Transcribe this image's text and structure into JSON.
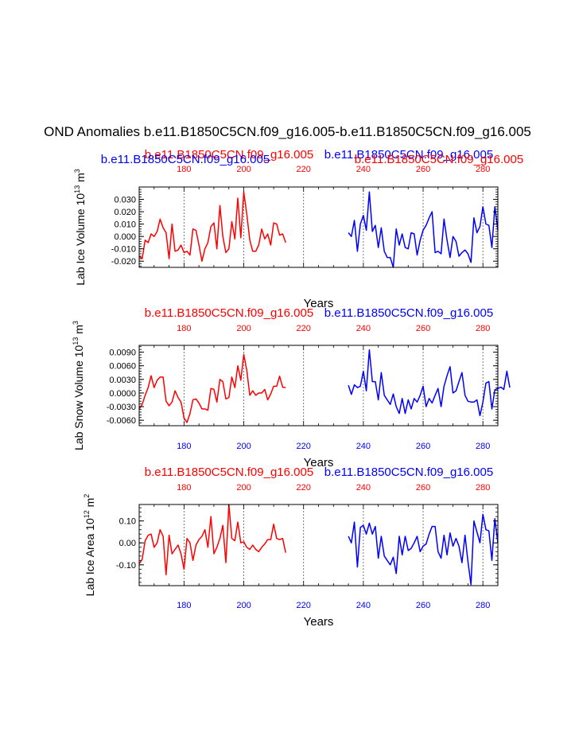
{
  "figure": {
    "title": "OND Anomalies b.e11.B1850C5CN.f09_g16.005-b.e11.B1850C5CN.f09_g16.005"
  },
  "colors": {
    "red": "#ff0000",
    "blue": "#0000ff",
    "black": "#000000",
    "grid": "#555555"
  },
  "chart_data": [
    {
      "type": "line",
      "panel": "ice-volume",
      "ylabel": "Lab Ice Volume 10",
      "ylabel_sup": "13",
      "ylabel_unit": " m",
      "ylabel_unit_sup": "3",
      "xlabel": "Years",
      "xlim": [
        165,
        285
      ],
      "ylim": [
        -0.025,
        0.04
      ],
      "yticks": [
        -0.02,
        -0.01,
        0.0,
        0.01,
        0.02,
        0.03
      ],
      "ytick_labels": [
        "-0.020",
        "-0.010",
        "0.000",
        "0.010",
        "0.020",
        "0.030"
      ],
      "top_ticks": [
        "180",
        "200",
        "220",
        "240",
        "260",
        "280"
      ],
      "bottom_ticks": [],
      "top_red_label": "b.e11.B1850C5CN.f09_g16.005",
      "top_blue_label": "b.e11.B1850C5CN.f09_g16.005",
      "overlap_red_label": "b.e11.B1850C5CN.f09_g16.005",
      "overlap_blue_label": "b.e11.B1850C5CN.f09_g16.005",
      "series": [
        {
          "name": "b.e11.B1850C5CN.f09_g16.005",
          "color": "red",
          "x_start": 165,
          "values": [
            -0.016,
            -0.018,
            -0.003,
            -0.005,
            0.002,
            0.0,
            0.004,
            0.014,
            0.007,
            0.003,
            -0.018,
            0.01,
            -0.012,
            -0.011,
            -0.007,
            -0.013,
            -0.012,
            -0.015,
            0.006,
            0.005,
            -0.007,
            -0.02,
            -0.01,
            -0.005,
            0.008,
            0.011,
            -0.01,
            0.025,
            0.0,
            -0.013,
            -0.01,
            0.012,
            -0.002,
            0.031,
            -0.001,
            0.036,
            0.018,
            -0.003,
            -0.012,
            -0.012,
            -0.007,
            0.006,
            -0.002,
            0.002,
            -0.007,
            0.011,
            0.01,
            0.001,
            0.002,
            -0.005
          ]
        },
        {
          "name": "b.e11.B1850C5CN.f09_g16.005",
          "color": "blue",
          "x_start": 235,
          "values": [
            0.003,
            0.0,
            0.013,
            -0.012,
            0.01,
            0.017,
            0.005,
            0.036,
            0.004,
            0.009,
            -0.009,
            0.007,
            -0.012,
            -0.017,
            -0.017,
            -0.025,
            0.006,
            -0.007,
            0.002,
            -0.009,
            -0.01,
            0.003,
            0.002,
            -0.015,
            -0.003,
            0.005,
            0.009,
            0.015,
            0.02,
            -0.013,
            -0.012,
            -0.014,
            0.014,
            -0.003,
            -0.017,
            0.0,
            -0.004,
            -0.016,
            -0.013,
            -0.011,
            -0.014,
            -0.021,
            0.015,
            0.003,
            0.008,
            0.024,
            0.01,
            0.009,
            -0.009,
            0.024,
            0.005
          ]
        }
      ]
    },
    {
      "type": "line",
      "panel": "snow-volume",
      "ylabel": "Lab Snow Volume 10",
      "ylabel_sup": "13",
      "ylabel_unit": " m",
      "ylabel_unit_sup": "3",
      "xlabel": "Years",
      "xlim": [
        165,
        285
      ],
      "ylim": [
        -0.0072,
        0.0105
      ],
      "yticks": [
        -0.006,
        -0.003,
        0.0,
        0.003,
        0.006,
        0.009
      ],
      "ytick_labels": [
        "-0.0060",
        "-0.0030",
        "0.0000",
        "0.0030",
        "0.0060",
        "0.0090"
      ],
      "top_ticks": [
        "180",
        "200",
        "220",
        "240",
        "260",
        "280"
      ],
      "bottom_ticks": [
        "180",
        "200",
        "220",
        "240",
        "260",
        "280"
      ],
      "top_red_label": "b.e11.B1850C5CN.f09_g16.005",
      "top_blue_label": "b.e11.B1850C5CN.f09_g16.005",
      "series": [
        {
          "name": "b.e11.B1850C5CN.f09_g16.005",
          "color": "red",
          "x_start": 165,
          "values": [
            -0.0035,
            -0.0025,
            -0.0005,
            0.0012,
            0.0038,
            0.0012,
            0.0028,
            0.0035,
            0.0035,
            -0.0018,
            -0.0028,
            -0.002,
            0.0005,
            -0.001,
            -0.002,
            -0.0055,
            -0.0065,
            -0.0045,
            -0.0015,
            -0.0013,
            -0.0022,
            -0.0035,
            -0.0035,
            -0.0038,
            0.001,
            0.0008,
            -0.002,
            0.003,
            0.0025,
            -0.0013,
            -0.001,
            0.0035,
            0.0012,
            0.006,
            0.0028,
            0.0085,
            0.005,
            -0.0005,
            0.0005,
            -0.0005,
            0.0,
            0.0,
            0.0008,
            -0.0015,
            -0.0002,
            0.0015,
            0.0015,
            0.0037,
            0.0013,
            0.0012
          ]
        },
        {
          "name": "b.e11.B1850C5CN.f09_g16.005",
          "color": "blue",
          "x_start": 235,
          "values": [
            0.0017,
            -0.0003,
            0.0018,
            0.0012,
            0.0015,
            0.0048,
            0.0005,
            0.0095,
            0.0025,
            0.0025,
            -0.0015,
            0.0045,
            -0.0005,
            -0.0015,
            -0.0025,
            -0.0002,
            -0.003,
            -0.0045,
            -0.0012,
            -0.0045,
            -0.0015,
            -0.0035,
            -0.0012,
            -0.002,
            -0.0005,
            0.0015,
            -0.003,
            -0.0012,
            -0.0022,
            -0.0005,
            0.001,
            -0.003,
            0.0015,
            0.0038,
            0.0058,
            0.0,
            0.0005,
            0.0025,
            0.0045,
            -0.0005,
            -0.0018,
            -0.002,
            -0.002,
            -0.0015,
            -0.005,
            -0.002,
            0.0022,
            0.0025,
            -0.0035,
            0.0007,
            0.001,
            0.0013,
            0.0008,
            0.0048,
            0.0012
          ]
        }
      ]
    },
    {
      "type": "line",
      "panel": "ice-area",
      "ylabel": "Lab Ice Area 10",
      "ylabel_sup": "12",
      "ylabel_unit": " m",
      "ylabel_unit_sup": "2",
      "xlabel": "Years",
      "xlim": [
        165,
        285
      ],
      "ylim": [
        -0.195,
        0.175
      ],
      "yticks": [
        -0.1,
        0.0,
        0.1
      ],
      "ytick_labels": [
        "-0.10",
        "0.00",
        "0.10"
      ],
      "top_ticks": [
        "180",
        "200",
        "220",
        "240",
        "260",
        "280"
      ],
      "bottom_ticks": [
        "180",
        "200",
        "220",
        "240",
        "260",
        "280"
      ],
      "top_red_label": "b.e11.B1850C5CN.f09_g16.005",
      "top_blue_label": "b.e11.B1850C5CN.f09_g16.005",
      "series": [
        {
          "name": "b.e11.B1850C5CN.f09_g16.005",
          "color": "red",
          "x_start": 165,
          "values": [
            -0.095,
            -0.075,
            0.01,
            0.035,
            0.04,
            -0.02,
            0.0,
            0.06,
            0.03,
            -0.145,
            0.035,
            -0.05,
            -0.03,
            -0.01,
            -0.05,
            -0.12,
            0.02,
            0.0,
            -0.08,
            -0.01,
            0.015,
            0.03,
            0.06,
            -0.02,
            0.12,
            -0.05,
            -0.02,
            0.02,
            0.08,
            -0.09,
            0.175,
            0.02,
            0.01,
            0.095,
            0.0,
            0.005,
            -0.02,
            -0.03,
            -0.01,
            -0.03,
            -0.04,
            -0.02,
            -0.005,
            0.015,
            0.015,
            0.085,
            0.02,
            0.015,
            0.02,
            -0.045
          ]
        },
        {
          "name": "b.e11.B1850C5CN.f09_g16.005",
          "color": "blue",
          "x_start": 235,
          "values": [
            0.03,
            0.0,
            0.095,
            -0.11,
            0.07,
            0.08,
            0.04,
            0.09,
            0.04,
            0.075,
            -0.07,
            0.03,
            -0.06,
            -0.08,
            -0.1,
            -0.065,
            -0.14,
            0.03,
            -0.055,
            0.03,
            -0.035,
            -0.025,
            0.0,
            0.03,
            -0.04,
            -0.015,
            -0.005,
            0.04,
            0.075,
            0.075,
            -0.04,
            -0.07,
            0.035,
            -0.055,
            0.045,
            -0.015,
            0.02,
            -0.015,
            -0.09,
            0.035,
            -0.085,
            -0.19,
            0.1,
            0.05,
            0.0,
            0.13,
            0.06,
            0.055,
            -0.08,
            0.11,
            0.0
          ]
        }
      ]
    }
  ]
}
